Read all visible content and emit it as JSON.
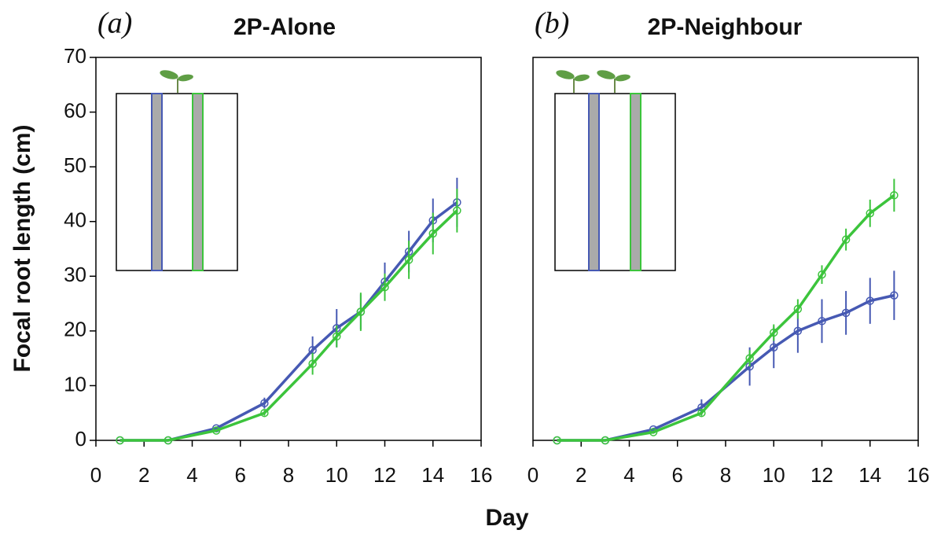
{
  "chart_data": [
    {
      "type": "line",
      "panel_label": "(a)",
      "title": "2P-Alone",
      "x": [
        1,
        3,
        5,
        7,
        9,
        10,
        11,
        12,
        13,
        14,
        15
      ],
      "series": [
        {
          "color": "#4659b3",
          "values": [
            0,
            0,
            2.2,
            6.8,
            16.5,
            20.5,
            23.5,
            29,
            34.5,
            40.2,
            43.5
          ],
          "errors": [
            0,
            0,
            0.3,
            1,
            2.5,
            3.5,
            3.2,
            3.5,
            3.8,
            4,
            4.5
          ]
        },
        {
          "color": "#3cc43c",
          "values": [
            0,
            0,
            1.8,
            5,
            14,
            19,
            23.5,
            28,
            33,
            37.8,
            42
          ],
          "errors": [
            0,
            0,
            0.3,
            0.5,
            2,
            2,
            3.5,
            2.5,
            3.5,
            3.8,
            4
          ]
        }
      ],
      "xlim": [
        0,
        16
      ],
      "xticks": [
        0,
        2,
        4,
        6,
        8,
        10,
        12,
        14,
        16
      ],
      "ylim": [
        0,
        70
      ],
      "yticks": [
        0,
        10,
        20,
        30,
        40,
        50,
        60,
        70
      ]
    },
    {
      "type": "line",
      "panel_label": "(b)",
      "title": "2P-Neighbour",
      "x": [
        1,
        3,
        5,
        7,
        9,
        10,
        11,
        12,
        13,
        14,
        15
      ],
      "series": [
        {
          "color": "#4659b3",
          "values": [
            0,
            0,
            2,
            6,
            13.5,
            17,
            20,
            21.8,
            23.3,
            25.5,
            26.5
          ],
          "errors": [
            0,
            0,
            0.3,
            1.5,
            3.5,
            3.8,
            4,
            4,
            4,
            4.2,
            4.5
          ]
        },
        {
          "color": "#3cc43c",
          "values": [
            0,
            0,
            1.5,
            5,
            15,
            19.7,
            24,
            30.3,
            36.7,
            41.5,
            44.8
          ],
          "errors": [
            0,
            0,
            0.3,
            0.5,
            1.5,
            1.5,
            1.8,
            1.7,
            2,
            2.5,
            3
          ]
        }
      ],
      "xlim": [
        0,
        16
      ],
      "xticks": [
        0,
        2,
        4,
        6,
        8,
        10,
        12,
        14,
        16
      ],
      "ylim": [
        0,
        70
      ]
    }
  ],
  "ylabel": "Focal root length (cm)",
  "xlabel": "Day"
}
